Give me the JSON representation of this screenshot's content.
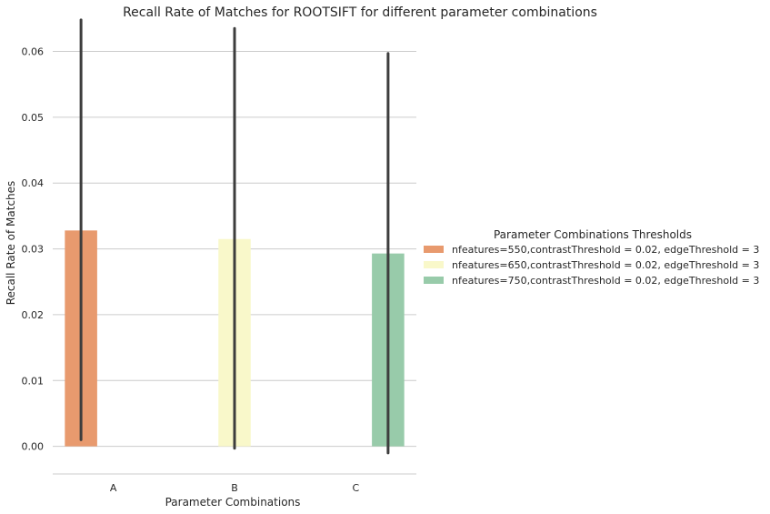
{
  "chart_data": {
    "type": "bar",
    "title": "Recall Rate of Matches for ROOTSIFT for different parameter combinations",
    "xlabel": "Parameter Combinations",
    "ylabel": "Recall Rate of Matches",
    "categories": [
      "A",
      "B",
      "C"
    ],
    "ylim": [
      -0.0042,
      0.0645
    ],
    "yticks": [
      0.0,
      0.01,
      0.02,
      0.03,
      0.04,
      0.05,
      0.06
    ],
    "ytick_labels": [
      "0.00",
      "0.01",
      "0.02",
      "0.03",
      "0.04",
      "0.05",
      "0.06"
    ],
    "grid": true,
    "legend": {
      "title": "Parameter Combinations Thresholds",
      "placement": "right"
    },
    "series": [
      {
        "name": "nfeatures=550,contrastThreshold = 0.02, edgeThreshold = 3",
        "color": "#e89a6e",
        "values": [
          0.0328,
          null,
          null
        ],
        "ci": [
          [
            0.001,
            0.0648
          ],
          null,
          null
        ]
      },
      {
        "name": "nfeatures=650,contrastThreshold = 0.02, edgeThreshold = 3",
        "color": "#f9f8ca",
        "values": [
          null,
          0.0315,
          null
        ],
        "ci": [
          null,
          [
            -0.0003,
            0.0635
          ],
          null
        ]
      },
      {
        "name": "nfeatures=750,contrastThreshold = 0.02, edgeThreshold = 3",
        "color": "#98cbaa",
        "values": [
          null,
          null,
          0.0293
        ],
        "ci": [
          null,
          null,
          [
            -0.001,
            0.0597
          ]
        ]
      }
    ],
    "errorbar_color": "#3d3d3d",
    "grid_color": "#cccccc"
  }
}
